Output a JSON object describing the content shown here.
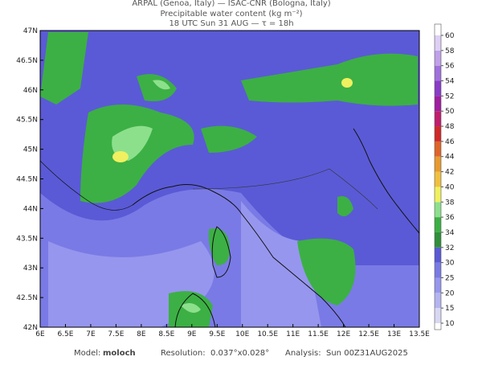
{
  "header": {
    "line1": "ARPAL (Genoa, Italy)  —  ISAC-CNR (Bologna, Italy)",
    "line2": "Precipitable water content (kg m⁻²)",
    "line3": "18 UTC Sun 31 AUG  —  τ = 18h"
  },
  "map": {
    "xlim": [
      6,
      13.5
    ],
    "ylim": [
      42,
      47
    ],
    "xticks": [
      {
        "value": 6,
        "label": "6E"
      },
      {
        "value": 6.5,
        "label": "6.5E"
      },
      {
        "value": 7,
        "label": "7E"
      },
      {
        "value": 7.5,
        "label": "7.5E"
      },
      {
        "value": 8,
        "label": "8E"
      },
      {
        "value": 8.5,
        "label": "8.5E"
      },
      {
        "value": 9,
        "label": "9E"
      },
      {
        "value": 9.5,
        "label": "9.5E"
      },
      {
        "value": 10,
        "label": "10E"
      },
      {
        "value": 10.5,
        "label": "10.5E"
      },
      {
        "value": 11,
        "label": "11E"
      },
      {
        "value": 11.5,
        "label": "11.5E"
      },
      {
        "value": 12,
        "label": "12E"
      },
      {
        "value": 12.5,
        "label": "12.5E"
      },
      {
        "value": 13,
        "label": "13E"
      },
      {
        "value": 13.5,
        "label": "13.5E"
      }
    ],
    "yticks": [
      {
        "value": 42,
        "label": "42N"
      },
      {
        "value": 42.5,
        "label": "42.5N"
      },
      {
        "value": 43,
        "label": "43N"
      },
      {
        "value": 43.5,
        "label": "43.5N"
      },
      {
        "value": 44,
        "label": "44N"
      },
      {
        "value": 44.5,
        "label": "44.5N"
      },
      {
        "value": 45,
        "label": "45N"
      },
      {
        "value": 45.5,
        "label": "45.5N"
      },
      {
        "value": 46,
        "label": "46N"
      },
      {
        "value": 46.5,
        "label": "46.5N"
      },
      {
        "value": 47,
        "label": "47N"
      }
    ]
  },
  "colorbar": {
    "ticks": [
      10,
      15,
      20,
      25,
      30,
      32,
      34,
      36,
      38,
      40,
      42,
      44,
      46,
      48,
      50,
      52,
      54,
      56,
      58,
      60
    ],
    "colors": [
      "#d8d8f4",
      "#b4b4f0",
      "#9696ee",
      "#7a7ae6",
      "#5a5ad6",
      "#2f8f3a",
      "#3cb044",
      "#8ce08c",
      "#f0f060",
      "#f0c040",
      "#e89a30",
      "#e06428",
      "#d02828",
      "#c01e6e",
      "#a01ea0",
      "#8a3cc8",
      "#a070dc",
      "#c0a0ea",
      "#ddd0f4"
    ]
  },
  "footer": {
    "model_label": "Model:",
    "model": "moloch",
    "resolution_label": "Resolution:",
    "resolution": "0.037°x0.028°",
    "analysis_label": "Analysis:",
    "analysis": "Sun 00Z31AUG2025"
  }
}
